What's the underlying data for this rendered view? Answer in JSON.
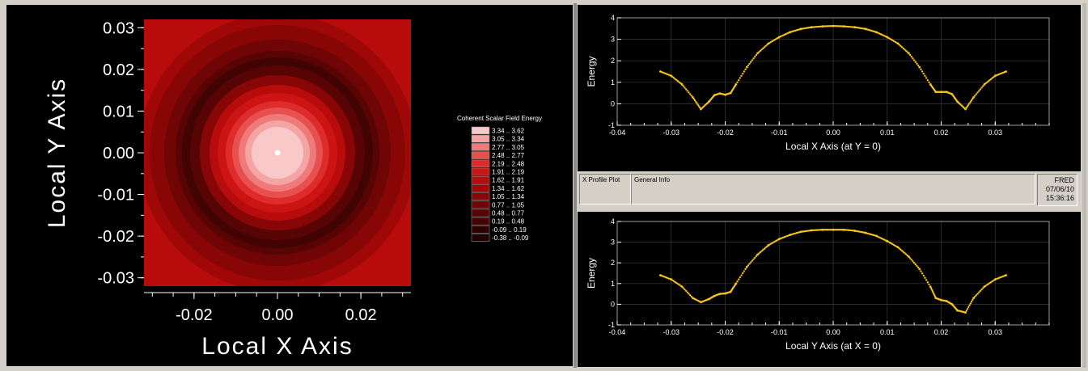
{
  "info_bar": {
    "tab_x_profile": "X Profile Plot",
    "tab_general": "General Info",
    "stamp_app": "FRED",
    "stamp_date": "07/06/10",
    "stamp_time": "15:36:16"
  },
  "colors": {
    "trace": "#f5c518",
    "background": "#000000",
    "axis": "#ffffff"
  },
  "chart_data": [
    {
      "type": "heatmap",
      "xlabel": "Local X Axis",
      "ylabel": "Local Y Axis",
      "xlim": [
        -0.032,
        0.032
      ],
      "ylim": [
        -0.032,
        0.032
      ],
      "xticks": [
        "-0.02",
        "0.00",
        "0.02"
      ],
      "yticks": [
        "0.03",
        "0.02",
        "0.01",
        "0.00",
        "-0.01",
        "-0.02",
        "-0.03"
      ],
      "legend_title": "Coherent Scalar Field Energy",
      "legend": [
        {
          "range": "3.34 .. 3.62",
          "color": "#f9c8c8"
        },
        {
          "range": "3.05 .. 3.34",
          "color": "#f5a4a4"
        },
        {
          "range": "2.77 .. 3.05",
          "color": "#ef7a7a"
        },
        {
          "range": "2.48 .. 2.77",
          "color": "#e85050"
        },
        {
          "range": "2.19 .. 2.48",
          "color": "#de2c2c"
        },
        {
          "range": "1.91 .. 2.19",
          "color": "#cc1414"
        },
        {
          "range": "1.62 .. 1.91",
          "color": "#b80c0c"
        },
        {
          "range": "1.34 .. 1.62",
          "color": "#a00808"
        },
        {
          "range": "1.05 .. 1.34",
          "color": "#880606"
        },
        {
          "range": "0.77 .. 1.05",
          "color": "#700505"
        },
        {
          "range": "0.48 .. 0.77",
          "color": "#580404"
        },
        {
          "range": "0.19 .. 0.48",
          "color": "#420303"
        },
        {
          "range": "-0.09 .. 0.19",
          "color": "#2e0202"
        },
        {
          "range": "-0.38 .. -0.09",
          "color": "#1e0101"
        }
      ]
    },
    {
      "type": "scatter",
      "xlabel": "Local X Axis (at Y = 0)",
      "ylabel": "Energy",
      "xlim": [
        -0.04,
        0.04
      ],
      "ylim": [
        -1,
        4
      ],
      "xticks": [
        "-0.04",
        "-0.03",
        "-0.02",
        "-0.01",
        "0.00",
        "0.01",
        "0.02",
        "0.03"
      ],
      "yticks": [
        "4",
        "3",
        "2",
        "1",
        "0",
        "-1"
      ],
      "x": [
        -0.032,
        -0.03,
        -0.028,
        -0.026,
        -0.0245,
        -0.023,
        -0.022,
        -0.021,
        -0.02,
        -0.019,
        -0.018,
        -0.016,
        -0.014,
        -0.012,
        -0.01,
        -0.008,
        -0.006,
        -0.004,
        -0.002,
        0.0,
        0.002,
        0.004,
        0.006,
        0.008,
        0.01,
        0.012,
        0.014,
        0.016,
        0.018,
        0.019,
        0.02,
        0.021,
        0.022,
        0.023,
        0.0245,
        0.026,
        0.028,
        0.03,
        0.032
      ],
      "y": [
        1.5,
        1.3,
        0.9,
        0.3,
        -0.25,
        0.1,
        0.4,
        0.48,
        0.42,
        0.5,
        0.9,
        1.7,
        2.35,
        2.8,
        3.1,
        3.33,
        3.48,
        3.56,
        3.6,
        3.62,
        3.6,
        3.56,
        3.48,
        3.33,
        3.1,
        2.8,
        2.35,
        1.7,
        0.9,
        0.55,
        0.55,
        0.55,
        0.45,
        0.1,
        -0.25,
        0.3,
        0.9,
        1.3,
        1.5
      ]
    },
    {
      "type": "scatter",
      "xlabel": "Local Y Axis (at X = 0)",
      "ylabel": "Energy",
      "xlim": [
        -0.04,
        0.04
      ],
      "ylim": [
        -1,
        4
      ],
      "xticks": [
        "-0.04",
        "-0.03",
        "-0.02",
        "-0.01",
        "0.00",
        "0.01",
        "0.02",
        "0.03"
      ],
      "yticks": [
        "4",
        "3",
        "2",
        "1",
        "0",
        "-1"
      ],
      "x": [
        -0.032,
        -0.03,
        -0.028,
        -0.026,
        -0.0245,
        -0.023,
        -0.022,
        -0.021,
        -0.02,
        -0.019,
        -0.018,
        -0.016,
        -0.014,
        -0.012,
        -0.01,
        -0.008,
        -0.006,
        -0.004,
        -0.002,
        0.0,
        0.002,
        0.004,
        0.006,
        0.008,
        0.01,
        0.012,
        0.014,
        0.016,
        0.018,
        0.019,
        0.02,
        0.021,
        0.022,
        0.023,
        0.0245,
        0.026,
        0.028,
        0.03,
        0.032
      ],
      "y": [
        1.4,
        1.2,
        0.85,
        0.3,
        0.1,
        0.25,
        0.4,
        0.5,
        0.52,
        0.6,
        1.0,
        1.8,
        2.4,
        2.85,
        3.15,
        3.35,
        3.5,
        3.57,
        3.6,
        3.6,
        3.6,
        3.55,
        3.45,
        3.3,
        3.05,
        2.75,
        2.3,
        1.7,
        0.85,
        0.3,
        0.2,
        0.15,
        0.0,
        -0.3,
        -0.4,
        0.3,
        0.85,
        1.2,
        1.4
      ]
    }
  ]
}
